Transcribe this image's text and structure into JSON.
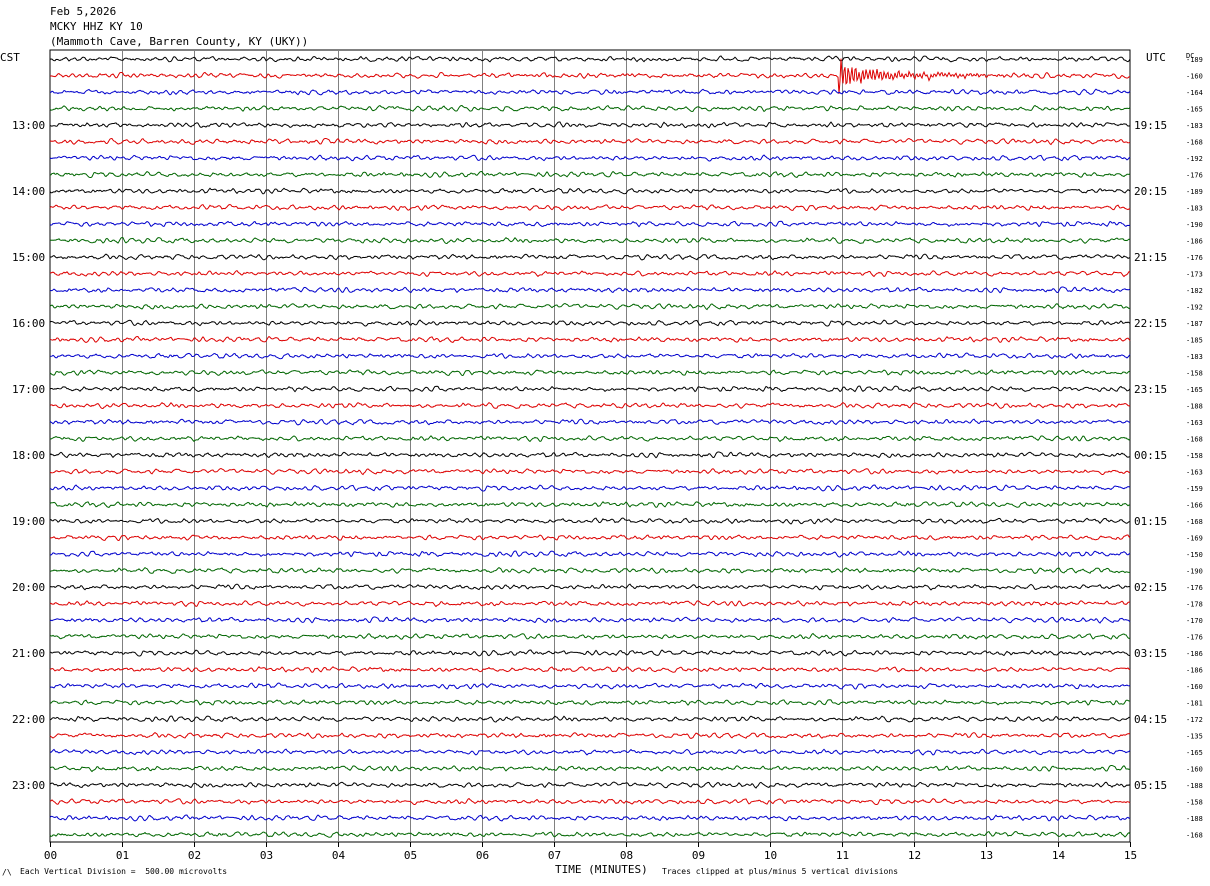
{
  "header": {
    "date": "Feb 5,2026",
    "station": "MCKY HHZ KY 10",
    "location": "(Mammoth Cave, Barren County, KY (UKY))"
  },
  "axes": {
    "left_zone": "CST",
    "right_zone": "UTC",
    "dc_label": "DC",
    "xlabel": "TIME (MINUTES)"
  },
  "footer": {
    "scale_note": "Each Vertical Division =  500.00 microvolts",
    "clip_note": "Traces clipped at plus/minus 5 vertical divisions",
    "corner_mark": "/\\"
  },
  "chart_data": {
    "type": "line",
    "title": "",
    "x_range": [
      0,
      15
    ],
    "x_tick_labels": [
      "00",
      "01",
      "02",
      "03",
      "04",
      "05",
      "06",
      "07",
      "08",
      "09",
      "10",
      "11",
      "12",
      "13",
      "14",
      "15"
    ],
    "trace_colors": [
      "#000000",
      "#dd0000",
      "#0000cc",
      "#006600"
    ],
    "trace_count": 48,
    "traces_per_hour": 4,
    "left_hour_labels": [
      "13:00",
      "14:00",
      "15:00",
      "16:00",
      "17:00",
      "18:00",
      "19:00",
      "20:00",
      "21:00",
      "22:00",
      "23:00"
    ],
    "right_hour_labels": [
      "19:15",
      "20:15",
      "21:15",
      "22:15",
      "23:15",
      "00:15",
      "01:15",
      "02:15",
      "03:15",
      "04:15",
      "05:15"
    ],
    "dc_offsets": [
      "-189",
      "-160",
      "-164",
      "-165",
      "-183",
      "-168",
      "-192",
      "-176",
      "-189",
      "-183",
      "-190",
      "-186",
      "-176",
      "-173",
      "-182",
      "-192",
      "-187",
      "-185",
      "-183",
      "-158",
      "-165",
      "-188",
      "-163",
      "-168",
      "-158",
      "-163",
      "-159",
      "-166",
      "-168",
      "-169",
      "-150",
      "-190",
      "-176",
      "-178",
      "-170",
      "-176",
      "-186",
      "-186",
      "-160",
      "-181",
      "-172",
      "-135",
      "-165",
      "-160",
      "-188",
      "-158",
      "-188",
      "-168"
    ],
    "event": {
      "trace_index": 1,
      "minute": 10.95,
      "label": ""
    }
  }
}
